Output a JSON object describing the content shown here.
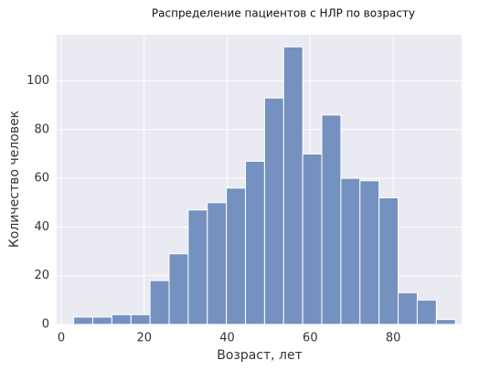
{
  "chart_data": {
    "type": "histogram",
    "title": "Распределение пациентов с НЛР по возрасту",
    "x_label": "Возраст, лет",
    "y_label": "Количество человек",
    "bins": [
      3,
      7.6,
      12.2,
      16.8,
      21.4,
      26,
      30.6,
      35.2,
      39.8,
      44.4,
      49,
      53.6,
      58.2,
      62.8,
      67.4,
      72,
      76.6,
      81.2,
      85.8,
      90.4,
      95
    ],
    "counts": [
      3,
      3,
      4,
      4,
      18,
      29,
      47,
      50,
      56,
      67,
      93,
      114,
      70,
      86,
      60,
      59,
      52,
      13,
      10,
      2
    ],
    "color": "#7591c0",
    "background": "#eaeaf2",
    "xlim": [
      -1.1,
      96.5
    ],
    "xticks": [
      0,
      20,
      40,
      60,
      80
    ],
    "ylim": [
      0,
      119
    ],
    "yticks": [
      0,
      20,
      40,
      60,
      80,
      100
    ],
    "grid": true
  }
}
